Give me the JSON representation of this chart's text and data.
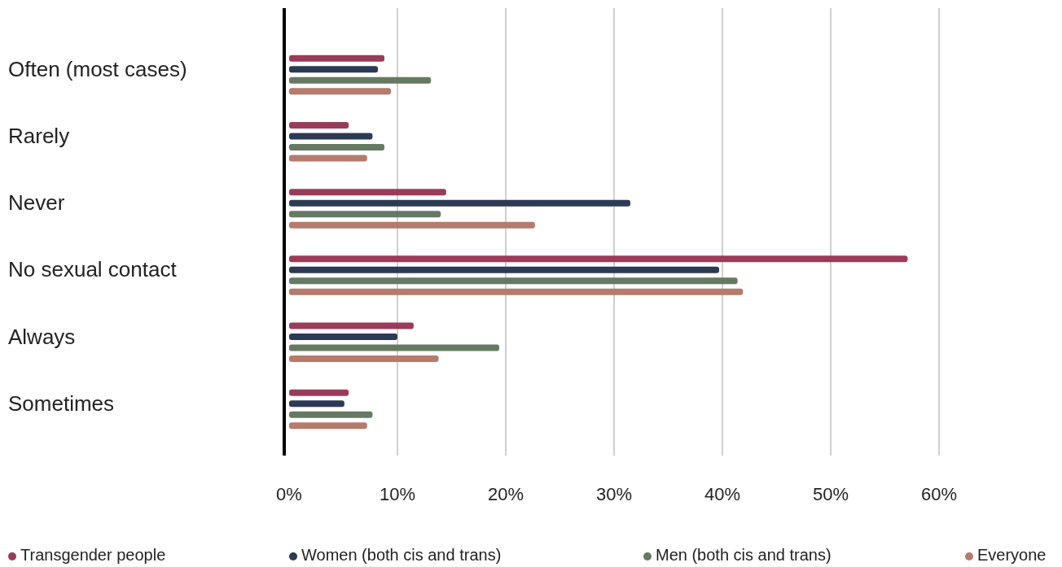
{
  "chart_data": {
    "type": "bar",
    "orientation": "horizontal",
    "categories": [
      "Often (most cases)",
      "Rarely",
      "Never",
      "No sexual contact",
      "Always",
      "Sometimes"
    ],
    "series": [
      {
        "name": "Transgender people",
        "color": "#9b3b5a",
        "values": [
          8.8,
          5.5,
          14.5,
          57.1,
          11.5,
          5.5
        ]
      },
      {
        "name": "Women (both cis and trans)",
        "color": "#2d3a55",
        "values": [
          8.2,
          7.7,
          31.5,
          39.7,
          10.0,
          5.1
        ]
      },
      {
        "name": "Men (both cis and trans)",
        "color": "#667a63",
        "values": [
          13.1,
          8.8,
          14.0,
          41.4,
          19.4,
          7.7
        ]
      },
      {
        "name": "Everyone",
        "color": "#b57b6c",
        "values": [
          9.4,
          7.2,
          22.7,
          41.9,
          13.8,
          7.2
        ]
      }
    ],
    "xlim": [
      0,
      60
    ],
    "xticks": [
      {
        "value": 0,
        "label": "0%"
      },
      {
        "value": 10,
        "label": "10%"
      },
      {
        "value": 20,
        "label": "20%"
      },
      {
        "value": 30,
        "label": "30%"
      },
      {
        "value": 40,
        "label": "40%"
      },
      {
        "value": 50,
        "label": "50%"
      },
      {
        "value": 60,
        "label": "60%"
      }
    ],
    "grid": "x",
    "legend": "bottom"
  }
}
